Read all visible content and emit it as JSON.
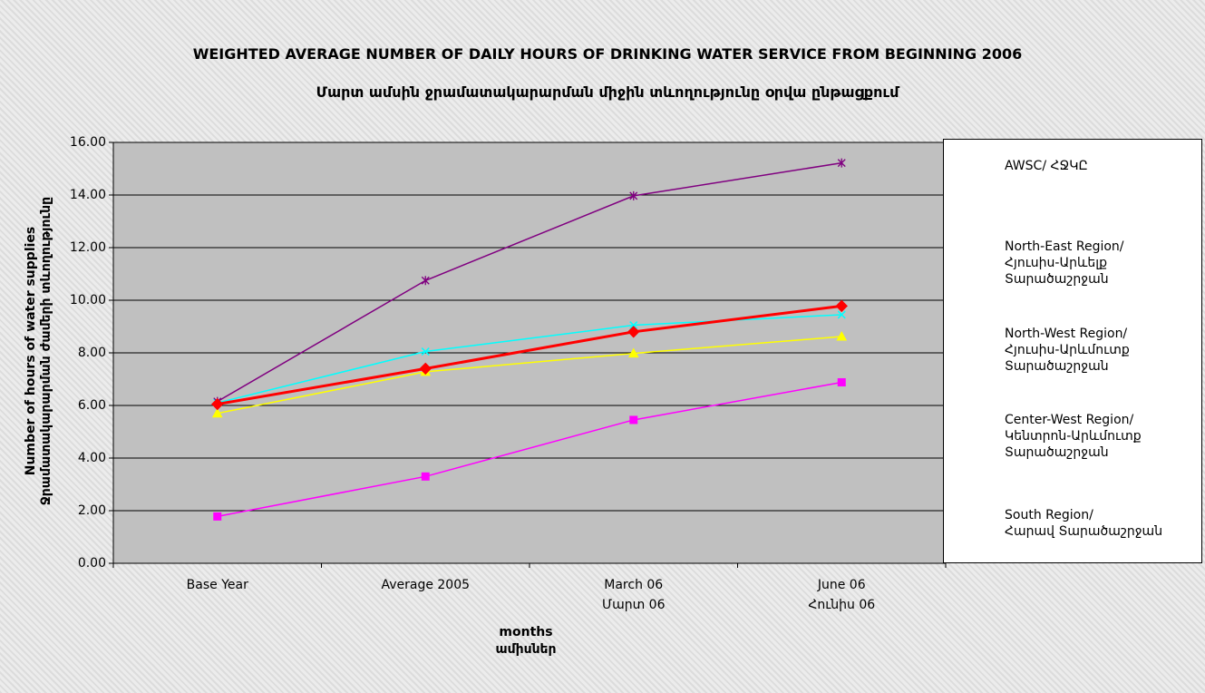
{
  "chart_data": {
    "type": "line",
    "title": "WEIGHTED AVERAGE NUMBER OF DAILY HOURS OF DRINKING WATER SERVICE FROM BEGINNING 2006",
    "subtitle": "Մարտ  ամսին ջրամատակարարման միջին տևողությունը օրվա ընթացքում",
    "ylabel": "Number of hours of water supplies\nՋրամատակարարման ժամերի տևողությունը",
    "xlabel": "months\nամիսներ",
    "categories": [
      [
        "Base Year"
      ],
      [
        "Average 2005"
      ],
      [
        "March 06",
        "Մարտ 06"
      ],
      [
        "June 06",
        "Հունիս 06"
      ]
    ],
    "series": [
      {
        "name": "AWSC/ ՀՋԿԸ",
        "color": "#ff0000",
        "marker": "diamond",
        "values": [
          6.05,
          7.4,
          8.8,
          9.78
        ]
      },
      {
        "name": "North-East Region/\nՀյուսիս-Արևելք\nՏարածաշրջան",
        "color": "#ff00ff",
        "marker": "square",
        "values": [
          1.78,
          3.3,
          5.45,
          6.88
        ]
      },
      {
        "name": "North-West Region/\nՀյուսիս-Արևմուտք\nՏարածաշրջան",
        "color": "#ffff00",
        "marker": "triangle",
        "values": [
          5.7,
          7.28,
          7.98,
          8.62
        ]
      },
      {
        "name": "Center-West Region/\nԿենտրոն-Արևմուտք\nՏարածաշրջան",
        "color": "#00ffff",
        "marker": "x",
        "values": [
          6.1,
          8.05,
          9.05,
          9.45
        ]
      },
      {
        "name": "South Region/\nՀարավ Տարածաշրջան",
        "color": "#800080",
        "marker": "star",
        "values": [
          6.15,
          10.75,
          13.97,
          15.22
        ]
      }
    ],
    "ylim": [
      0,
      16
    ],
    "yticks": [
      {
        "value": 0,
        "label": "0.00"
      },
      {
        "value": 2,
        "label": "2.00"
      },
      {
        "value": 4,
        "label": "4.00"
      },
      {
        "value": 6,
        "label": "6.00"
      },
      {
        "value": 8,
        "label": "8.00"
      },
      {
        "value": 10,
        "label": "10.00"
      },
      {
        "value": 12,
        "label": "12.00"
      },
      {
        "value": 14,
        "label": "14.00"
      },
      {
        "value": 16,
        "label": "16.00"
      }
    ],
    "grid": true,
    "legend": "right"
  }
}
